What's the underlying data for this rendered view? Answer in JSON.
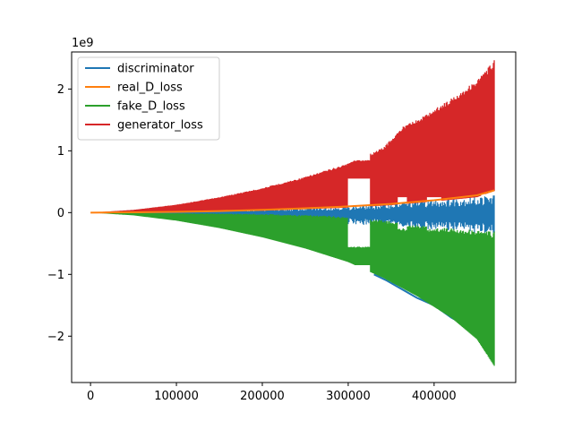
{
  "chart_data": {
    "type": "line",
    "offset_label": "1e9",
    "xlim": [
      -22000,
      495000
    ],
    "ylim": [
      -2.75,
      2.6
    ],
    "x_ticks": [
      0,
      100000,
      200000,
      300000,
      400000
    ],
    "x_tick_labels": [
      "0",
      "100000",
      "200000",
      "300000",
      "400000"
    ],
    "y_ticks": [
      -2,
      -1,
      0,
      1,
      2
    ],
    "y_tick_labels": [
      "−2",
      "−1",
      "0",
      "1",
      "2"
    ],
    "legend_position": "upper-left",
    "grid": false,
    "series": [
      {
        "name": "discriminator",
        "color": "#1f77b4",
        "lower": [
          [
            0,
            0
          ],
          [
            50000,
            -0.02
          ],
          [
            100000,
            -0.04
          ],
          [
            150000,
            -0.07
          ],
          [
            200000,
            -0.1
          ],
          [
            250000,
            -0.14
          ],
          [
            300000,
            -0.19
          ],
          [
            340000,
            -0.21
          ],
          [
            380000,
            -0.27
          ],
          [
            420000,
            -0.3
          ],
          [
            460000,
            -0.34
          ],
          [
            470000,
            -0.35
          ]
        ],
        "upper": [
          [
            0,
            0
          ],
          [
            100000,
            0.02
          ],
          [
            200000,
            0.05
          ],
          [
            300000,
            0.1
          ],
          [
            340000,
            0.14
          ],
          [
            380000,
            0.2
          ],
          [
            420000,
            0.24
          ],
          [
            460000,
            0.28
          ],
          [
            470000,
            0.3
          ]
        ],
        "edge": [
          [
            330000,
            -1.0
          ],
          [
            345000,
            -1.1
          ],
          [
            360000,
            -1.22
          ],
          [
            380000,
            -1.38
          ],
          [
            400000,
            -1.5
          ],
          [
            420000,
            -1.7
          ],
          [
            440000,
            -1.85
          ],
          [
            460000,
            -2.05
          ],
          [
            470000,
            -2.12
          ]
        ]
      },
      {
        "name": "real_D_loss",
        "color": "#ff7f0e",
        "line": [
          [
            0,
            0
          ],
          [
            50000,
            0.004
          ],
          [
            100000,
            0.012
          ],
          [
            150000,
            0.025
          ],
          [
            200000,
            0.045
          ],
          [
            250000,
            0.07
          ],
          [
            300000,
            0.1
          ],
          [
            350000,
            0.14
          ],
          [
            400000,
            0.2
          ],
          [
            450000,
            0.28
          ],
          [
            470000,
            0.36
          ]
        ]
      },
      {
        "name": "fake_D_loss",
        "color": "#2ca02c",
        "upper": [
          [
            0,
            0
          ],
          [
            100000,
            -0.01
          ],
          [
            200000,
            -0.02
          ],
          [
            280000,
            -0.05
          ],
          [
            340000,
            -0.12
          ],
          [
            380000,
            -0.2
          ],
          [
            420000,
            -0.25
          ],
          [
            470000,
            -0.3
          ]
        ],
        "lower": [
          [
            0,
            0
          ],
          [
            50000,
            -0.045
          ],
          [
            100000,
            -0.13
          ],
          [
            150000,
            -0.25
          ],
          [
            200000,
            -0.4
          ],
          [
            250000,
            -0.58
          ],
          [
            300000,
            -0.8
          ],
          [
            340000,
            -1.05
          ],
          [
            380000,
            -1.35
          ],
          [
            420000,
            -1.7
          ],
          [
            450000,
            -2.05
          ],
          [
            470000,
            -2.48
          ]
        ]
      },
      {
        "name": "generator_loss",
        "color": "#d62728",
        "lower": [
          [
            0,
            0
          ],
          [
            100000,
            0.01
          ],
          [
            200000,
            0.03
          ],
          [
            300000,
            0.08
          ],
          [
            350000,
            0.12
          ],
          [
            400000,
            0.18
          ],
          [
            450000,
            0.25
          ],
          [
            470000,
            0.35
          ]
        ],
        "upper": [
          [
            0,
            0
          ],
          [
            50000,
            0.045
          ],
          [
            100000,
            0.13
          ],
          [
            150000,
            0.25
          ],
          [
            200000,
            0.4
          ],
          [
            250000,
            0.58
          ],
          [
            300000,
            0.8
          ],
          [
            340000,
            1.05
          ],
          [
            370000,
            1.48
          ],
          [
            380000,
            1.5
          ],
          [
            420000,
            1.85
          ],
          [
            450000,
            2.15
          ],
          [
            470000,
            2.47
          ]
        ]
      }
    ],
    "gaps": [
      {
        "from": 300000,
        "to": 325000,
        "series": [
          "generator_loss",
          "fake_D_loss"
        ],
        "remaining_band": [
          0.55,
          0.85
        ]
      },
      {
        "from": 358000,
        "to": 368000,
        "series": [
          "generator_loss",
          "fake_D_loss"
        ],
        "remaining_band": [
          0.25,
          1.45
        ]
      },
      {
        "from": 392000,
        "to": 408000,
        "series": [
          "generator_loss",
          "fake_D_loss"
        ],
        "remaining_band": [
          0.25,
          1.75
        ]
      },
      {
        "from": 455000,
        "to": 462000,
        "series": [
          "generator_loss",
          "fake_D_loss"
        ],
        "remaining_band": [
          0.3,
          2.3
        ]
      }
    ]
  }
}
